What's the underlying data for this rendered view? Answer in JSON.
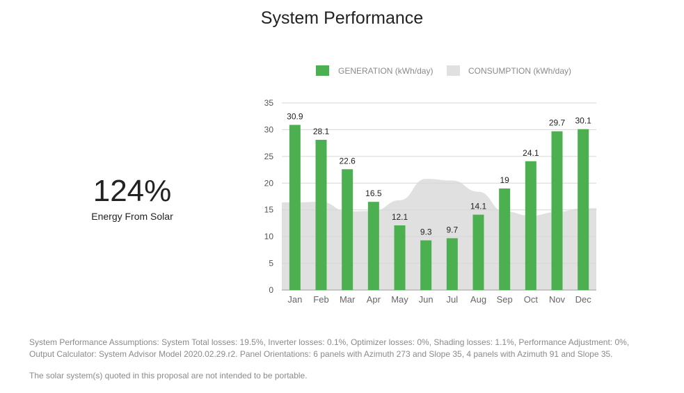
{
  "title": "System Performance",
  "kpi": {
    "value": "124%",
    "label": "Energy From Solar"
  },
  "chart_data": {
    "type": "bar",
    "categories": [
      "Jan",
      "Feb",
      "Mar",
      "Apr",
      "May",
      "Jun",
      "Jul",
      "Aug",
      "Sep",
      "Oct",
      "Nov",
      "Dec"
    ],
    "series": [
      {
        "name": "GENERATION (kWh/day)",
        "kind": "bar",
        "color": "#4caf50",
        "values": [
          30.9,
          28.1,
          22.6,
          16.5,
          12.1,
          9.3,
          9.7,
          14.1,
          19,
          24.1,
          29.7,
          30.1
        ]
      },
      {
        "name": "CONSUMPTION (kWh/day)",
        "kind": "area",
        "color": "#e0e0e0",
        "values": [
          16.4,
          16.5,
          14.7,
          14.8,
          16.8,
          20.8,
          20.5,
          18.4,
          14.7,
          13.9,
          14.6,
          15.3
        ]
      }
    ],
    "ylim": [
      0,
      35
    ],
    "yticks": [
      0,
      5,
      10,
      15,
      20,
      25,
      30,
      35
    ],
    "grid": true,
    "legend": "top",
    "data_labels": [
      "30.9",
      "28.1",
      "22.6",
      "16.5",
      "12.1",
      "9.3",
      "9.7",
      "14.1",
      "19",
      "24.1",
      "29.7",
      "30.1"
    ]
  },
  "footnotes": {
    "assumptions_line1": "System Performance Assumptions: System Total losses: 19.5%, Inverter losses: 0.1%, Optimizer losses: 0%, Shading losses: 1.1%, Performance Adjustment: 0%,",
    "assumptions_line2": "Output Calculator: System Advisor Model 2020.02.29.r2. Panel Orientations: 6 panels with Azimuth 273 and Slope 35, 4 panels with Azimuth 91 and Slope 35.",
    "portable": "The solar system(s) quoted in this proposal are not intended to be portable."
  }
}
